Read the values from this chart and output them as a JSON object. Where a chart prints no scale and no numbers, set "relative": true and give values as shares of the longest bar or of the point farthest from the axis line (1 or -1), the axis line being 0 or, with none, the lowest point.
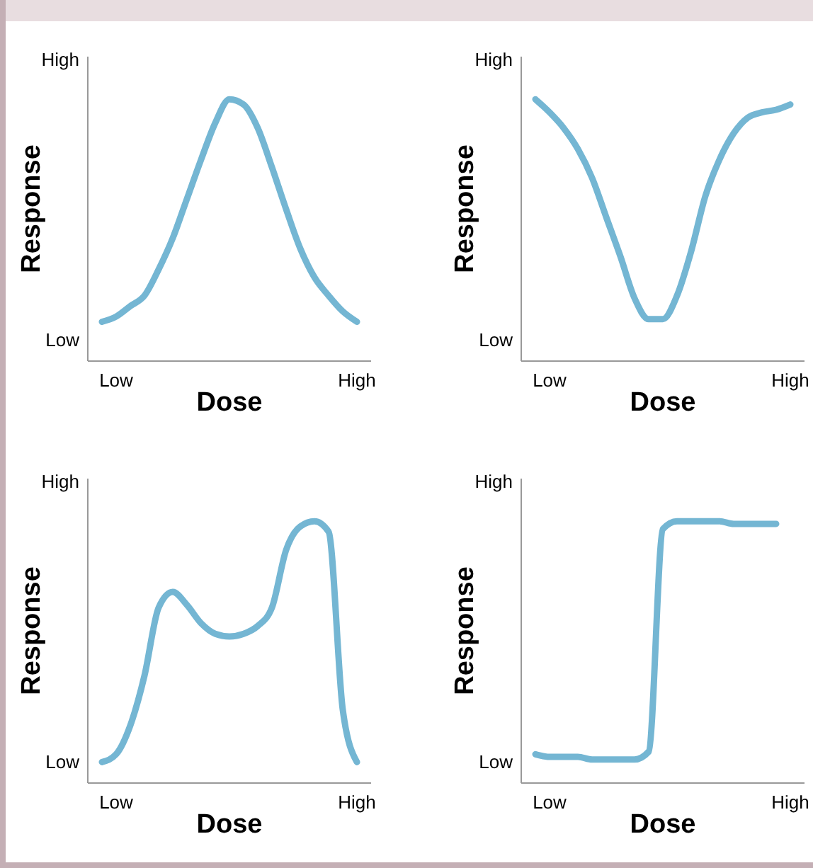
{
  "chart_data": [
    {
      "type": "line",
      "relative": true,
      "xlabel": "Dose",
      "ylabel": "Response",
      "annotations": [
        "Low",
        "High"
      ],
      "color": "#74b6d3",
      "categories": [
        null,
        null,
        "Low",
        null,
        null,
        null,
        null,
        null,
        null,
        null,
        null,
        null,
        null,
        null,
        null,
        null,
        null,
        null,
        null,
        "High",
        null
      ],
      "values": [
        null,
        0.15,
        0.17,
        0.21,
        0.25,
        0.35,
        0.47,
        0.62,
        0.77,
        0.91,
        1,
        0.98,
        0.89,
        0.74,
        0.58,
        0.43,
        0.32,
        0.25,
        0.19,
        0.15,
        null
      ]
    },
    {
      "type": "line",
      "relative": true,
      "xlabel": "Dose",
      "ylabel": "Response",
      "annotations": [
        "Low",
        "High"
      ],
      "color": "#74b6d3",
      "categories": [
        null,
        null,
        "Low",
        null,
        null,
        null,
        null,
        null,
        null,
        null,
        null,
        null,
        null,
        null,
        null,
        null,
        null,
        null,
        null,
        "High",
        null
      ],
      "values": [
        null,
        1,
        0.95,
        0.89,
        0.81,
        0.7,
        0.55,
        0.4,
        0.24,
        0.16,
        0.16,
        0.25,
        0.42,
        0.63,
        0.77,
        0.87,
        0.93,
        0.95,
        0.96,
        0.98,
        null
      ]
    },
    {
      "type": "line",
      "relative": true,
      "xlabel": "Dose",
      "ylabel": "Response",
      "annotations": [
        "Low",
        "High"
      ],
      "color": "#74b6d3",
      "categories": [
        null,
        null,
        "Low",
        null,
        null,
        null,
        null,
        null,
        null,
        null,
        null,
        null,
        null,
        null,
        null,
        null,
        null,
        null,
        null,
        "High",
        null
      ],
      "values": [
        null,
        0.08,
        0.11,
        0.22,
        0.41,
        0.67,
        0.73,
        0.68,
        0.61,
        0.57,
        0.56,
        0.57,
        0.6,
        0.67,
        0.89,
        0.98,
        1,
        0.96,
        0.28,
        0.08,
        null
      ]
    },
    {
      "type": "line",
      "relative": true,
      "xlabel": "Dose",
      "ylabel": "Response",
      "annotations": [
        "Low",
        "High"
      ],
      "color": "#74b6d3",
      "categories": [
        null,
        null,
        "Low",
        null,
        null,
        null,
        null,
        null,
        null,
        null,
        null,
        null,
        null,
        null,
        null,
        null,
        null,
        null,
        null,
        "High",
        null
      ],
      "values": [
        null,
        0.11,
        0.1,
        0.1,
        0.1,
        0.09,
        0.09,
        0.09,
        0.09,
        0.12,
        0.97,
        1,
        1,
        1,
        1,
        0.99,
        0.99,
        0.99,
        0.99,
        null,
        null
      ]
    }
  ]
}
